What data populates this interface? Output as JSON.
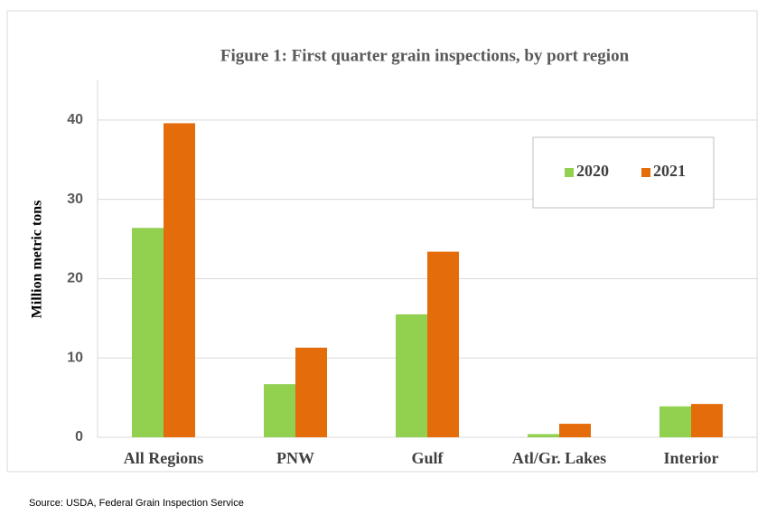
{
  "chart_data": {
    "type": "bar",
    "title": "Figure 1:  First quarter grain inspections, by port region",
    "y_label": "Million metric tons",
    "source": "Source:  USDA, Federal Grain Inspection Service",
    "categories": [
      "All Regions",
      "PNW",
      "Gulf",
      "Atl/Gr. Lakes",
      "Interior"
    ],
    "series": [
      {
        "name": "2020",
        "color": "#92d050",
        "values": [
          26.4,
          6.7,
          15.5,
          0.4,
          3.9
        ]
      },
      {
        "name": "2021",
        "color": "#e46c0a",
        "values": [
          39.6,
          11.3,
          23.4,
          1.7,
          4.2
        ]
      }
    ],
    "ylim": [
      0,
      45
    ],
    "yticks": [
      0,
      10,
      20,
      30,
      40
    ],
    "grid": true,
    "legend": "upper right"
  }
}
